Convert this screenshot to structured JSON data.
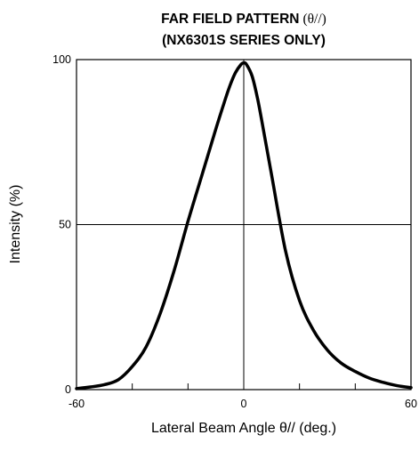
{
  "chart_data": {
    "type": "line",
    "title": "FAR FIELD PATTERN",
    "title_symbol": "(θ//)",
    "subtitle": "(NX6301S SERIES ONLY)",
    "xlabel": "Lateral Beam Angle θ// (deg.)",
    "ylabel": "Intensity (%)",
    "xlim": [
      -60,
      60
    ],
    "ylim": [
      0,
      100
    ],
    "x_tick_labels": [
      "-60",
      "0",
      "60"
    ],
    "y_tick_labels": [
      "0",
      "50",
      "100"
    ],
    "x_minor_ticks": [
      -40,
      -20,
      20,
      40
    ],
    "grid": "crosshair at x=0 and y=50",
    "series": [
      {
        "x": [
          -60,
          -55,
          -50,
          -45,
          -40,
          -35,
          -30,
          -25,
          -20,
          -15,
          -10,
          -7,
          -5,
          -3,
          -1,
          0,
          1,
          3,
          5,
          7,
          10,
          15,
          20,
          25,
          30,
          35,
          40,
          45,
          50,
          55,
          60
        ],
        "values": [
          0.3,
          0.8,
          1.5,
          3,
          7,
          13,
          23,
          36,
          51,
          65,
          79,
          87,
          92,
          96,
          98.5,
          99,
          98.5,
          95,
          88,
          79,
          65,
          42,
          27,
          18,
          12,
          8,
          5.5,
          3.5,
          2.2,
          1.2,
          0.6
        ]
      }
    ],
    "line_color": "#000000"
  }
}
